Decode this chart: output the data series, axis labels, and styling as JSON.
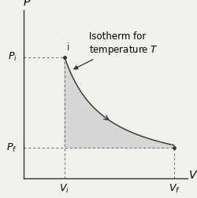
{
  "xlabel": "V",
  "ylabel": "P",
  "pi": 0.72,
  "pf": 0.18,
  "vi": 0.25,
  "vf": 0.92,
  "xlim": [
    0,
    1.0
  ],
  "ylim": [
    0,
    1.0
  ],
  "curve_color": "#333333",
  "shade_color": "#d6d6d6",
  "dash_color": "#666666",
  "background_color": "#f2f0eb",
  "fontsize_axis": 10,
  "fontsize_tick": 9,
  "fontsize_annot": 8.5,
  "arrow_idx": 120
}
